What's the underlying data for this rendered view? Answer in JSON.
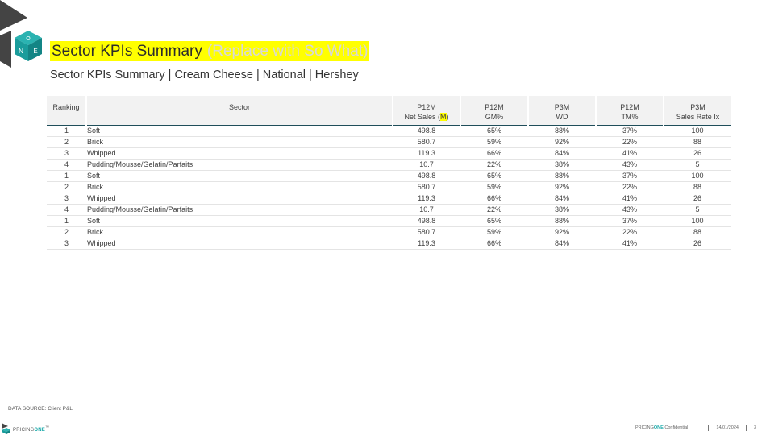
{
  "header": {
    "title": "Sector KPIs Summary",
    "title_note": "(Replace with So What)",
    "subtitle": "Sector KPIs Summary | Cream Cheese | National | Hershey",
    "logo_letters": [
      "O",
      "N",
      "E"
    ]
  },
  "table": {
    "columns": {
      "ranking": "Ranking",
      "sector": "Sector",
      "net_sales_line1": "P12M",
      "net_sales_line2_prefix": "Net Sales (",
      "net_sales_unit": "M",
      "net_sales_line2_suffix": ")",
      "gm_line1": "P12M",
      "gm_line2": "GM%",
      "wd_line1": "P3M",
      "wd_line2": "WD",
      "tm_line1": "P12M",
      "tm_line2": "TM%",
      "sri_line1": "P3M",
      "sri_line2": "Sales Rate Ix"
    },
    "rows": [
      {
        "rank": "1",
        "sector": "Soft",
        "net_sales": "498.8",
        "gm": "65%",
        "wd": "88%",
        "tm": "37%",
        "sri": "100"
      },
      {
        "rank": "2",
        "sector": "Brick",
        "net_sales": "580.7",
        "gm": "59%",
        "wd": "92%",
        "tm": "22%",
        "sri": "88"
      },
      {
        "rank": "3",
        "sector": "Whipped",
        "net_sales": "119.3",
        "gm": "66%",
        "wd": "84%",
        "tm": "41%",
        "sri": "26"
      },
      {
        "rank": "4",
        "sector": "Pudding/Mousse/Gelatin/Parfaits",
        "net_sales": "10.7",
        "gm": "22%",
        "wd": "38%",
        "tm": "43%",
        "sri": "5"
      },
      {
        "rank": "1",
        "sector": "Soft",
        "net_sales": "498.8",
        "gm": "65%",
        "wd": "88%",
        "tm": "37%",
        "sri": "100"
      },
      {
        "rank": "2",
        "sector": "Brick",
        "net_sales": "580.7",
        "gm": "59%",
        "wd": "92%",
        "tm": "22%",
        "sri": "88"
      },
      {
        "rank": "3",
        "sector": "Whipped",
        "net_sales": "119.3",
        "gm": "66%",
        "wd": "84%",
        "tm": "41%",
        "sri": "26"
      },
      {
        "rank": "4",
        "sector": "Pudding/Mousse/Gelatin/Parfaits",
        "net_sales": "10.7",
        "gm": "22%",
        "wd": "38%",
        "tm": "43%",
        "sri": "5"
      },
      {
        "rank": "1",
        "sector": "Soft",
        "net_sales": "498.8",
        "gm": "65%",
        "wd": "88%",
        "tm": "37%",
        "sri": "100"
      },
      {
        "rank": "2",
        "sector": "Brick",
        "net_sales": "580.7",
        "gm": "59%",
        "wd": "92%",
        "tm": "22%",
        "sri": "88"
      },
      {
        "rank": "3",
        "sector": "Whipped",
        "net_sales": "119.3",
        "gm": "66%",
        "wd": "84%",
        "tm": "41%",
        "sri": "26"
      }
    ]
  },
  "data_source": "DATA SOURCE: Client P&L",
  "footer": {
    "brand_prefix": "PRICING",
    "brand_suffix": "ONE",
    "brand_tm": "™",
    "confidential_prefix": "PRICING",
    "confidential_one": "ONE",
    "confidential_suffix": " Confidential",
    "date": "14/01/2024",
    "page_number": "3"
  },
  "colors": {
    "highlight": "#ffff00",
    "brand_teal": "#1aa9a9",
    "logo_dark": "#444444",
    "header_rule": "#1f4e5a",
    "header_bg": "#f2f2f2"
  },
  "icons": {
    "top_logo": "pricingone-cube-logo",
    "footer_logo": "pricingone-small-logo"
  }
}
